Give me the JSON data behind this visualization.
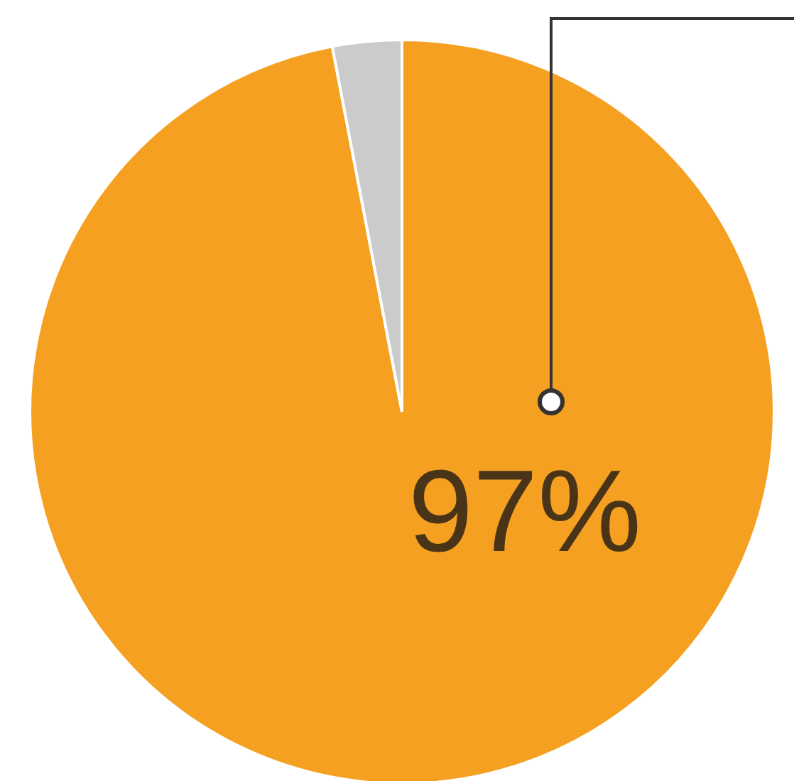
{
  "chart_data": {
    "type": "pie",
    "categories": [
      null,
      null
    ],
    "values": [
      97,
      3
    ],
    "colors": [
      "#f5a020",
      "#cbcbcb"
    ],
    "value_labels": [
      "97%",
      null
    ],
    "legend": false
  }
}
